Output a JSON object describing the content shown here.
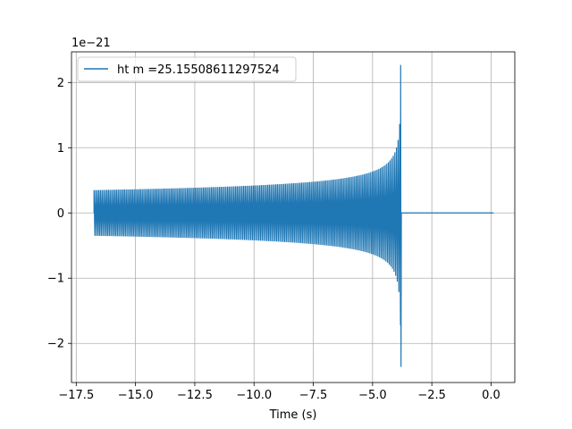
{
  "chart_data": {
    "type": "line",
    "xlabel": "Time (s)",
    "ylabel": "",
    "y_scale_note": "1e−21",
    "xlim": [
      -17.7,
      1.0
    ],
    "ylim": [
      -2.6,
      2.47
    ],
    "x_ticks": [
      -17.5,
      -15.0,
      -12.5,
      -10.0,
      -7.5,
      -5.0,
      -2.5,
      0.0
    ],
    "x_tick_labels": [
      "−17.5",
      "−15.0",
      "−12.5",
      "−10.0",
      "−7.5",
      "−5.0",
      "−2.5",
      "0.0"
    ],
    "y_ticks": [
      -2,
      -1,
      0,
      1,
      2
    ],
    "y_tick_labels": [
      "−2",
      "−1",
      "0",
      "1",
      "2"
    ],
    "grid": true,
    "legend_position": "top-left",
    "colors": {
      "series": "#1f77b4"
    },
    "series": [
      {
        "name": "ht m =25.15508611297524",
        "t_start": -16.75,
        "t_merger": -3.8,
        "t_end": 0.1,
        "amplitude_start": 0.35,
        "amplitude_peak": 2.27,
        "amplitude_min_peak": -2.36
      }
    ]
  }
}
